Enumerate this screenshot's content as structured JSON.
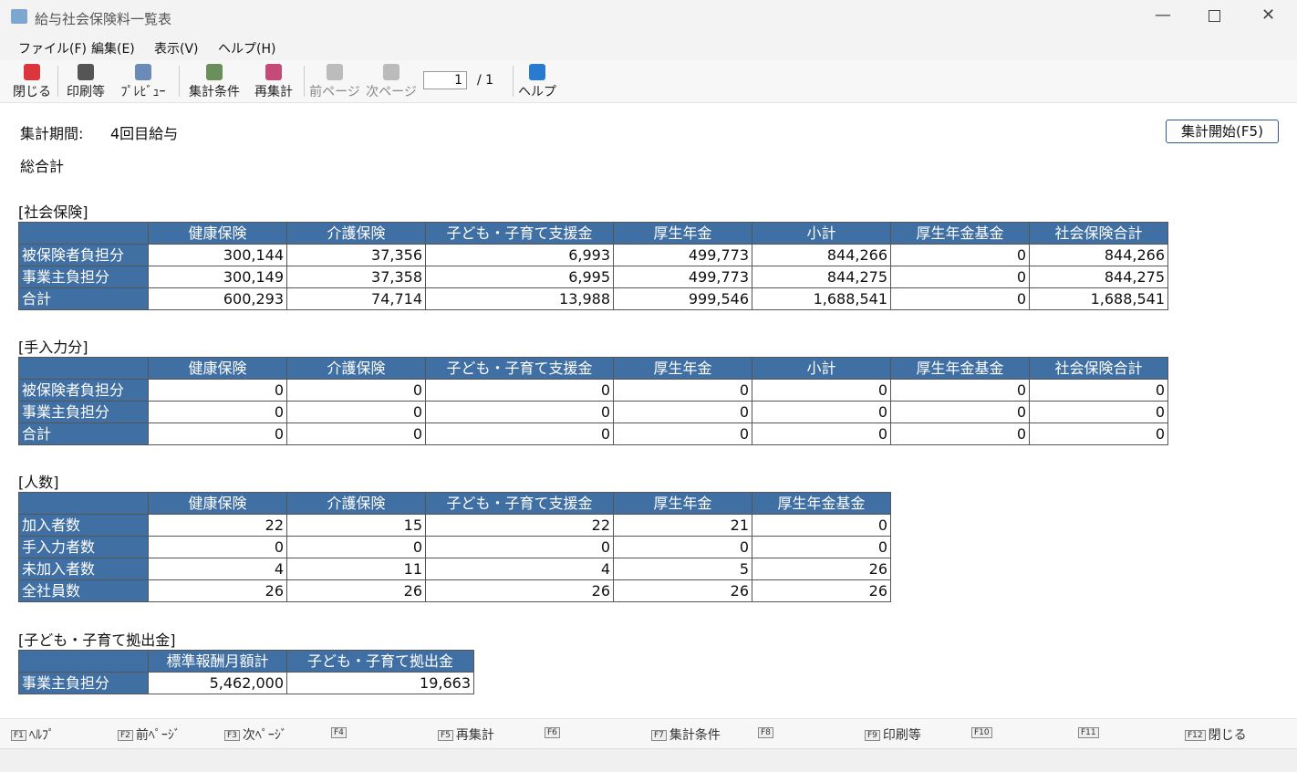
{
  "window": {
    "title": "給与社会保険料一覧表"
  },
  "menu": [
    "ファイル(F)",
    "編集(E)",
    "表示(V)",
    "ヘルプ(H)"
  ],
  "toolbar": [
    "閉じる",
    "印刷等",
    "ﾌﾟﾚﾋﾞｭｰ",
    "集計条件",
    "再集計",
    "前ページ",
    "次ページ",
    "ヘルプ"
  ],
  "pager": {
    "current": "1",
    "total": "/ 1"
  },
  "period": {
    "label": "集計期間:",
    "value": "4回目給与"
  },
  "start_button": "集計開始(F5)",
  "summary_label": "総合計",
  "sections": [
    {
      "title": "[社会保険]",
      "columns": [
        "健康保険",
        "介護保険",
        "子ども・子育て支援金",
        "厚生年金",
        "小計",
        "厚生年金基金",
        "社会保険合計"
      ],
      "rows": [
        [
          "被保険者負担分",
          "300,144",
          "37,356",
          "6,993",
          "499,773",
          "844,266",
          "0",
          "844,266"
        ],
        [
          "事業主負担分",
          "300,149",
          "37,358",
          "6,995",
          "499,773",
          "844,275",
          "0",
          "844,275"
        ],
        [
          "合計",
          "600,293",
          "74,714",
          "13,988",
          "999,546",
          "1,688,541",
          "0",
          "1,688,541"
        ]
      ]
    },
    {
      "title": "[手入力分]",
      "columns": [
        "健康保険",
        "介護保険",
        "子ども・子育て支援金",
        "厚生年金",
        "小計",
        "厚生年金基金",
        "社会保険合計"
      ],
      "rows": [
        [
          "被保険者負担分",
          "0",
          "0",
          "0",
          "0",
          "0",
          "0",
          "0"
        ],
        [
          "事業主負担分",
          "0",
          "0",
          "0",
          "0",
          "0",
          "0",
          "0"
        ],
        [
          "合計",
          "0",
          "0",
          "0",
          "0",
          "0",
          "0",
          "0"
        ]
      ]
    },
    {
      "title": "[人数]",
      "columns": [
        "健康保険",
        "介護保険",
        "子ども・子育て支援金",
        "厚生年金",
        "厚生年金基金"
      ],
      "rows": [
        [
          "加入者数",
          "22",
          "15",
          "22",
          "21",
          "0"
        ],
        [
          "手入力者数",
          "0",
          "0",
          "0",
          "0",
          "0"
        ],
        [
          "未加入者数",
          "4",
          "11",
          "4",
          "5",
          "26"
        ],
        [
          "全社員数",
          "26",
          "26",
          "26",
          "26",
          "26"
        ]
      ]
    },
    {
      "title": "[子ども・子育て拠出金]",
      "columns": [
        "標準報酬月額計",
        "子ども・子育て拠出金"
      ],
      "rows": [
        [
          "事業主負担分",
          "5,462,000",
          "19,663"
        ]
      ]
    }
  ],
  "function_keys": [
    {
      "key": "F1",
      "label": "ﾍﾙﾌﾟ"
    },
    {
      "key": "F2",
      "label": "前ﾍﾟｰｼﾞ"
    },
    {
      "key": "F3",
      "label": "次ﾍﾟｰｼﾞ"
    },
    {
      "key": "F4"
    },
    {
      "key": "F5",
      "label": "再集計"
    },
    {
      "key": "F6"
    },
    {
      "key": "F7",
      "label": "集計条件"
    },
    {
      "key": "F8"
    },
    {
      "key": "F9",
      "label": "印刷等"
    },
    {
      "key": "F10"
    },
    {
      "key": "F11"
    },
    {
      "key": "F12",
      "label": "閉じる"
    }
  ]
}
